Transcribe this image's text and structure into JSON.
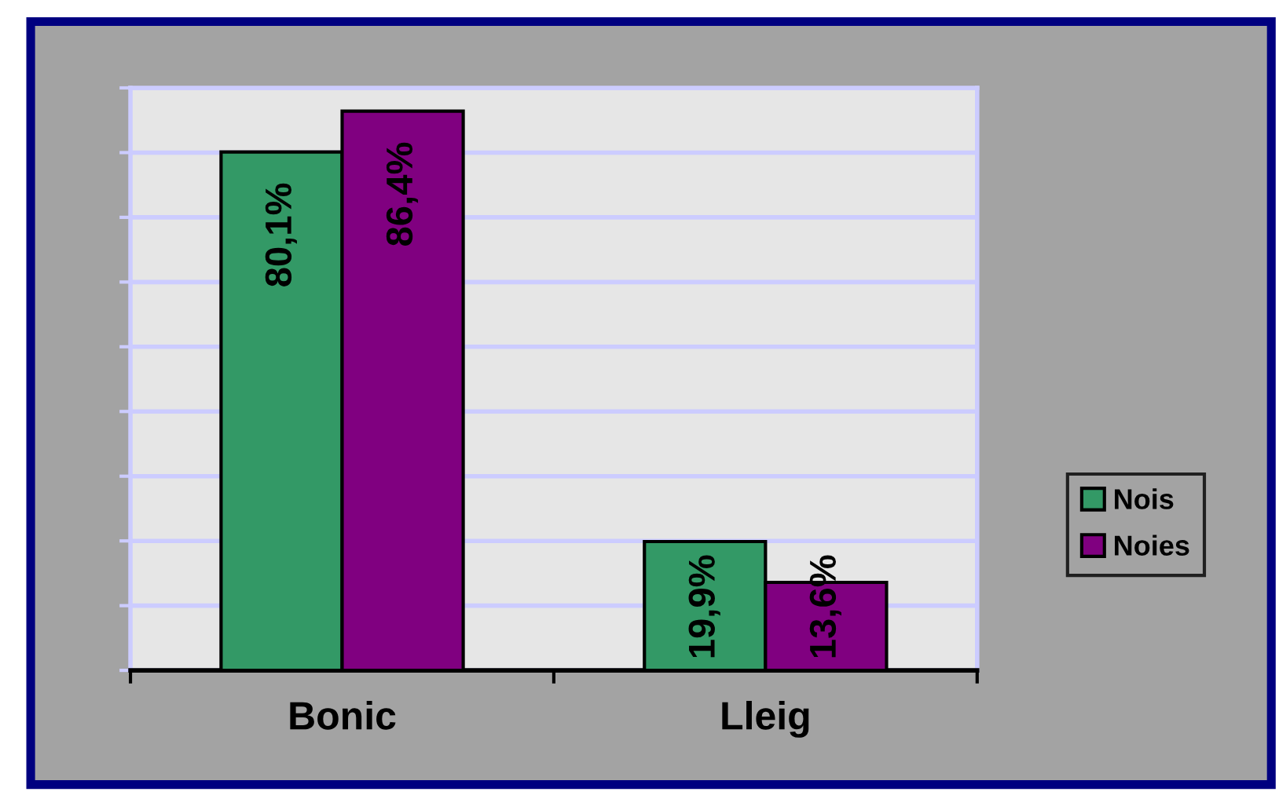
{
  "chart_data": {
    "type": "bar",
    "categories": [
      "Bonic",
      "Lleig"
    ],
    "series": [
      {
        "name": "Nois",
        "color": "#339966",
        "values": [
          80.1,
          19.9
        ],
        "value_labels": [
          "80,1%",
          "19,9%"
        ]
      },
      {
        "name": "Noies",
        "color": "#800080",
        "values": [
          86.4,
          13.6
        ],
        "value_labels": [
          "86,4%",
          "13,6%"
        ]
      }
    ],
    "ylim": [
      0,
      90
    ],
    "yticks": [
      {
        "value": 0,
        "label": null
      },
      {
        "value": 10,
        "label": null
      },
      {
        "value": 20,
        "label": null
      },
      {
        "value": 30,
        "label": null
      },
      {
        "value": 40,
        "label": null
      },
      {
        "value": 50,
        "label": null
      },
      {
        "value": 60,
        "label": null
      },
      {
        "value": 70,
        "label": null
      },
      {
        "value": 80,
        "label": null
      },
      {
        "value": 90,
        "label": null
      }
    ],
    "grid": "y",
    "legend": "right",
    "tick_labels": "x"
  }
}
